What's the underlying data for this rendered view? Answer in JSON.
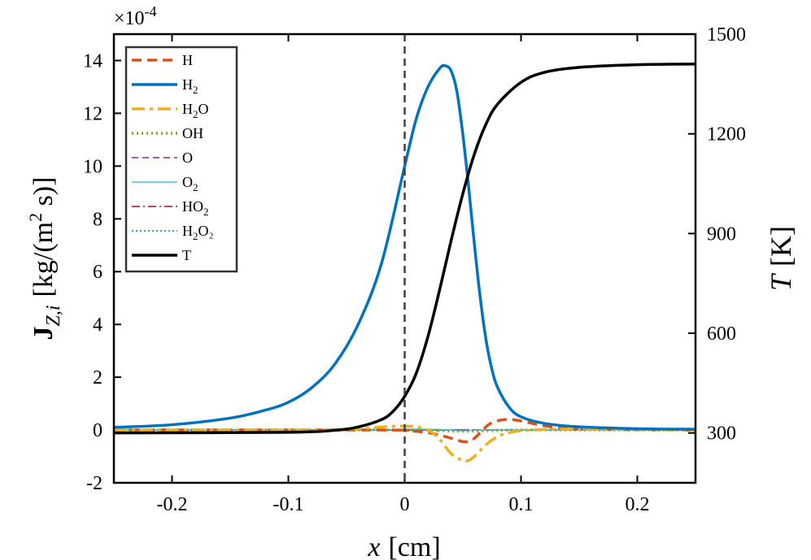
{
  "chart_data": {
    "type": "line",
    "title": "",
    "multiplier_label": "×10",
    "multiplier_exponent": "-4",
    "xlabel": {
      "main": "x",
      "unit": "[cm]"
    },
    "ylabel_left": {
      "bold": "J",
      "sub": "Z,i",
      "unit_pre": "[kg/(m",
      "sup": "2",
      "unit_post": " s)]"
    },
    "ylabel_right": {
      "main": "T",
      "unit": "[K]"
    },
    "xlim": [
      -0.25,
      0.25
    ],
    "ylim_left": [
      -2,
      15
    ],
    "ylim_right": [
      150,
      1500
    ],
    "xticks": [
      -0.2,
      -0.1,
      0,
      0.1,
      0.2
    ],
    "xtick_labels": [
      "-0.2",
      "-0.1",
      "0",
      "0.1",
      "0.2"
    ],
    "yticks_left": [
      -2,
      0,
      2,
      4,
      6,
      8,
      10,
      12,
      14
    ],
    "ytick_labels_left": [
      "-2",
      "0",
      "2",
      "4",
      "6",
      "8",
      "10",
      "12",
      "14"
    ],
    "yticks_right": [
      300,
      600,
      900,
      1200,
      1500
    ],
    "ytick_labels_right": [
      "300",
      "600",
      "900",
      "1200",
      "1500"
    ],
    "vline_x": 0,
    "legend": [
      {
        "key": "H",
        "base": "H",
        "sub": "",
        "tail": ""
      },
      {
        "key": "H2",
        "base": "H",
        "sub": "2",
        "tail": ""
      },
      {
        "key": "H2O",
        "base": "H",
        "sub": "2",
        "tail": "O"
      },
      {
        "key": "OH",
        "base": "OH",
        "sub": "",
        "tail": ""
      },
      {
        "key": "O",
        "base": "O",
        "sub": "",
        "tail": ""
      },
      {
        "key": "O2",
        "base": "O",
        "sub": "2",
        "tail": ""
      },
      {
        "key": "HO2",
        "base": "HO",
        "sub": "2",
        "tail": ""
      },
      {
        "key": "H2O2",
        "base": "H",
        "sub": "2",
        "tail": "O₂"
      },
      {
        "key": "T",
        "base": "T",
        "sub": "",
        "tail": ""
      }
    ],
    "series": [
      {
        "name": "H",
        "axis": "left",
        "color": "#D95319",
        "width": 3.5,
        "dash": "12,7",
        "x": [
          -0.25,
          -0.02,
          0.0,
          0.02,
          0.035,
          0.045,
          0.052,
          0.058,
          0.065,
          0.072,
          0.08,
          0.088,
          0.095,
          0.105,
          0.115,
          0.13,
          0.16,
          0.25
        ],
        "y": [
          0,
          0,
          -0.02,
          -0.1,
          -0.25,
          -0.38,
          -0.45,
          -0.38,
          -0.1,
          0.2,
          0.35,
          0.4,
          0.38,
          0.3,
          0.2,
          0.1,
          0.03,
          0
        ]
      },
      {
        "name": "H2",
        "axis": "left",
        "color": "#0072BD",
        "width": 3.5,
        "dash": "",
        "x": [
          -0.25,
          -0.2,
          -0.15,
          -0.12,
          -0.1,
          -0.08,
          -0.06,
          -0.04,
          -0.02,
          0.0,
          0.01,
          0.02,
          0.03,
          0.035,
          0.04,
          0.045,
          0.05,
          0.055,
          0.06,
          0.065,
          0.07,
          0.075,
          0.08,
          0.09,
          0.1,
          0.12,
          0.15,
          0.2,
          0.25
        ],
        "y": [
          0.1,
          0.2,
          0.45,
          0.75,
          1.05,
          1.6,
          2.5,
          4.0,
          6.3,
          10.0,
          11.8,
          13.0,
          13.7,
          13.8,
          13.6,
          12.8,
          11.2,
          9.2,
          7.0,
          5.0,
          3.4,
          2.3,
          1.6,
          0.85,
          0.5,
          0.25,
          0.12,
          0.05,
          0.03
        ]
      },
      {
        "name": "H2O",
        "axis": "left",
        "color": "#EDB120",
        "width": 3.5,
        "dash": "16,6,4,6",
        "x": [
          -0.25,
          -0.1,
          -0.06,
          -0.03,
          -0.015,
          0.0,
          0.01,
          0.02,
          0.03,
          0.04,
          0.05,
          0.055,
          0.06,
          0.07,
          0.08,
          0.09,
          0.1,
          0.12,
          0.15,
          0.25
        ],
        "y": [
          0,
          0,
          0.02,
          0.08,
          0.13,
          0.15,
          0.12,
          0.0,
          -0.35,
          -0.9,
          -1.15,
          -1.15,
          -1.0,
          -0.55,
          -0.25,
          -0.1,
          -0.03,
          0.02,
          0.03,
          0
        ]
      },
      {
        "name": "OH",
        "axis": "left",
        "color": "#77AC30",
        "width": 3.5,
        "dash": "2,4",
        "x": [
          -0.25,
          0.0,
          0.03,
          0.05,
          0.07,
          0.1,
          0.25
        ],
        "y": [
          0,
          0,
          -0.03,
          -0.05,
          -0.03,
          0,
          0
        ]
      },
      {
        "name": "O",
        "axis": "left",
        "color": "#7E2F8E",
        "width": 1.5,
        "dash": "8,5",
        "x": [
          -0.25,
          0.25
        ],
        "y": [
          0,
          0
        ]
      },
      {
        "name": "O2",
        "axis": "left",
        "color": "#4DBEEE",
        "width": 1.5,
        "dash": "",
        "x": [
          -0.25,
          -0.05,
          0.0,
          0.03,
          0.05,
          0.08,
          0.25
        ],
        "y": [
          0,
          0,
          0.03,
          0.02,
          -0.03,
          0,
          0
        ]
      },
      {
        "name": "HO2",
        "axis": "left",
        "color": "#A2142F",
        "width": 1.5,
        "dash": "10,4,2,4",
        "x": [
          -0.25,
          0.25
        ],
        "y": [
          0,
          0
        ]
      },
      {
        "name": "H2O2",
        "axis": "left",
        "color": "#0072BD",
        "width": 1.5,
        "dash": "2,3",
        "x": [
          -0.25,
          0.25
        ],
        "y": [
          0,
          0
        ]
      },
      {
        "name": "T",
        "axis": "right",
        "color": "#000000",
        "width": 3.5,
        "dash": "",
        "x": [
          -0.25,
          -0.1,
          -0.06,
          -0.04,
          -0.02,
          -0.01,
          0.0,
          0.01,
          0.02,
          0.03,
          0.04,
          0.05,
          0.06,
          0.07,
          0.08,
          0.1,
          0.12,
          0.15,
          0.2,
          0.25
        ],
        "y": [
          300,
          302,
          308,
          318,
          340,
          365,
          410,
          480,
          590,
          730,
          880,
          1020,
          1140,
          1230,
          1290,
          1355,
          1385,
          1400,
          1408,
          1410
        ]
      }
    ]
  }
}
